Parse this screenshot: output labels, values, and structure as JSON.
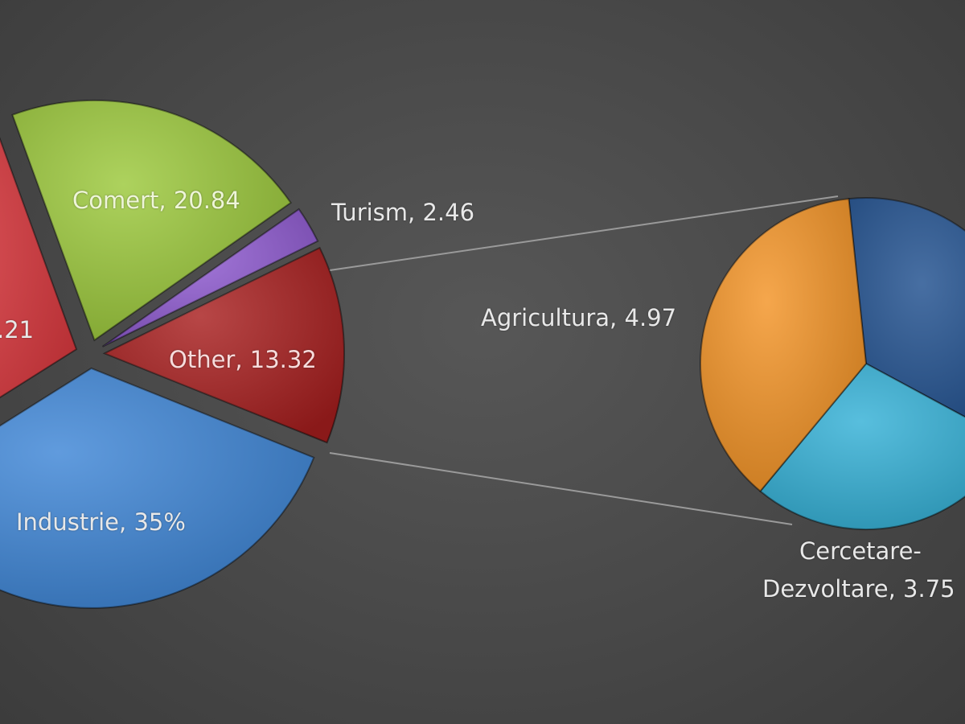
{
  "chart_data": {
    "type": "pie",
    "subtype": "pie-of-pie",
    "title": "",
    "main_pie": {
      "slices": [
        {
          "label": "Comert, 20.84",
          "category": "Comert",
          "value": 20.84,
          "color": "#9bc83a"
        },
        {
          "label": "Turism, 2.46",
          "category": "Turism",
          "value": 2.46,
          "color": "#8f5ad1"
        },
        {
          "label": "Other, 13.32",
          "category": "Other",
          "value": 13.32,
          "color": "#a81e1e"
        },
        {
          "label": "Industrie, 35%",
          "category": "Industrie",
          "value": 35,
          "color": "#3d85d6"
        },
        {
          "label": ".21",
          "category": "",
          "value": null,
          "color": "#d9343a"
        }
      ]
    },
    "secondary_pie": {
      "source": "Other",
      "slices": [
        {
          "label": "",
          "category": "",
          "value": null,
          "color": "#1f4f8e"
        },
        {
          "label": "Cercetare-\nDezvoltare, 3.75",
          "label_lines": [
            "Cercetare-",
            "Dezvoltare, 3.75"
          ],
          "category": "Cercetare-Dezvoltare",
          "value": 3.75,
          "color": "#33b0d6"
        },
        {
          "label": "Agricultura, 4.97",
          "category": "Agricultura",
          "value": 4.97,
          "color": "#f39325"
        }
      ]
    },
    "legend": "none",
    "background": "#4a4a4a"
  }
}
